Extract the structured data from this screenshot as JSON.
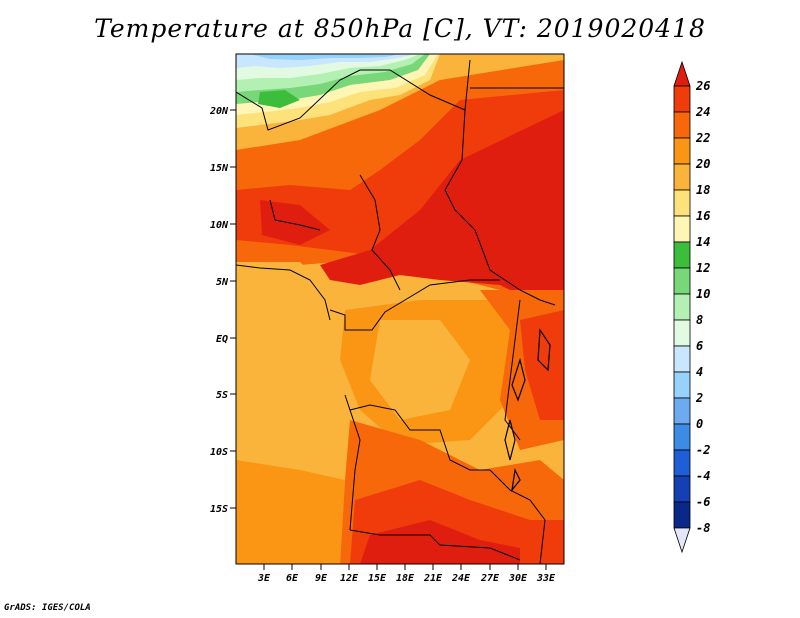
{
  "title": "Temperature at 850hPa [C], VT: 2019020418",
  "credit": "GrADS: IGES/COLA",
  "map": {
    "lat_labels": [
      "20N",
      "15N",
      "10N",
      "5N",
      "EQ",
      "5S",
      "10S",
      "15S"
    ],
    "lon_labels": [
      "3E",
      "6E",
      "9E",
      "12E",
      "15E",
      "18E",
      "21E",
      "24E",
      "27E",
      "30E",
      "33E"
    ]
  },
  "colorbar": {
    "labels": [
      "26",
      "24",
      "22",
      "20",
      "18",
      "16",
      "14",
      "12",
      "10",
      "8",
      "6",
      "4",
      "2",
      "0",
      "-2",
      "-4",
      "-6",
      "-8"
    ],
    "colors": [
      "#e01e10",
      "#f03c0a",
      "#f7680a",
      "#fa9614",
      "#fab43c",
      "#fde17a",
      "#fff5b4",
      "#3cbe3c",
      "#78d778",
      "#b4f0b4",
      "#e1fae1",
      "#c8e6ff",
      "#96d2fa",
      "#6eaaf0",
      "#3c8ce6",
      "#1e5fd7",
      "#1440b4",
      "#0a2887",
      "#000a64"
    ]
  }
}
